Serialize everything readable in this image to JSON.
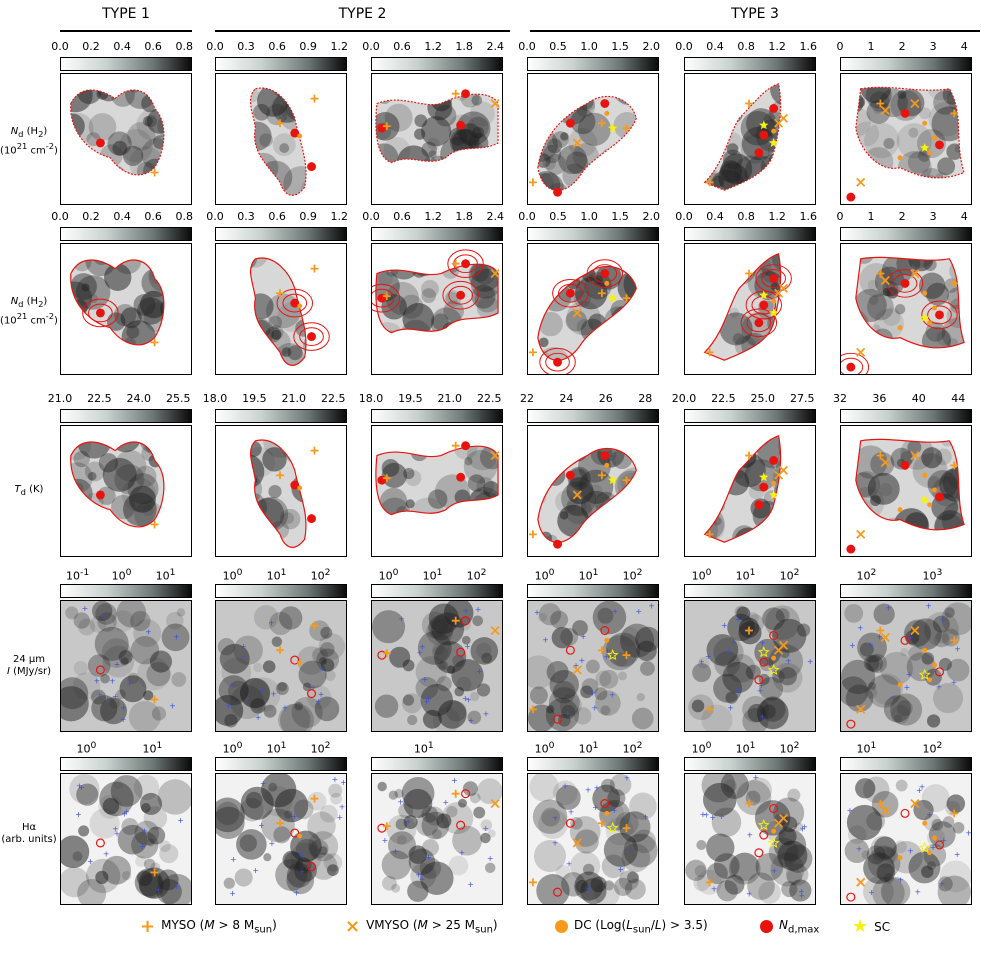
{
  "headers": {
    "type1": "TYPE 1",
    "type2": "TYPE 2",
    "type3": "TYPE 3"
  },
  "row_labels": {
    "row1": [
      "N_d (H_2)",
      "(10^21 cm^-2)"
    ],
    "row2": [
      "N_d (H_2)",
      "(10^21 cm^-2)"
    ],
    "row3": [
      "T_d (K)"
    ],
    "row4": [
      "24 μm",
      "I (MJy/sr)"
    ],
    "row5": [
      "Hα",
      "(arb. units)"
    ]
  },
  "colorbar_ticks": {
    "row1": [
      [
        "0.0",
        "0.2",
        "0.4",
        "0.6",
        "0.8"
      ],
      [
        "0.0",
        "0.3",
        "0.6",
        "0.9",
        "1.2"
      ],
      [
        "0.0",
        "0.6",
        "1.2",
        "1.8",
        "2.4"
      ],
      [
        "0.0",
        "0.5",
        "1.0",
        "1.5",
        "2.0"
      ],
      [
        "0.0",
        "0.4",
        "0.8",
        "1.2",
        "1.6"
      ],
      [
        "0",
        "1",
        "2",
        "3",
        "4"
      ]
    ],
    "row2": [
      [
        "0.0",
        "0.2",
        "0.4",
        "0.6",
        "0.8"
      ],
      [
        "0.0",
        "0.3",
        "0.6",
        "0.9",
        "1.2"
      ],
      [
        "0.0",
        "0.6",
        "1.2",
        "1.8",
        "2.4"
      ],
      [
        "0.0",
        "0.5",
        "1.0",
        "1.5",
        "2.0"
      ],
      [
        "0.0",
        "0.4",
        "0.8",
        "1.2",
        "1.6"
      ],
      [
        "0",
        "1",
        "2",
        "3",
        "4"
      ]
    ],
    "row3": [
      [
        "21.0",
        "22.5",
        "24.0",
        "25.5"
      ],
      [
        "18.0",
        "19.5",
        "21.0",
        "22.5"
      ],
      [
        "18.0",
        "19.5",
        "21.0",
        "22.5"
      ],
      [
        "22",
        "24",
        "26",
        "28"
      ],
      [
        "20.0",
        "22.5",
        "25.0",
        "27.5"
      ],
      [
        "32",
        "36",
        "40",
        "44"
      ]
    ],
    "row4": [
      [
        "10^-1",
        "10^0",
        "10^1"
      ],
      [
        "10^0",
        "10^1",
        "10^2"
      ],
      [
        "10^0",
        "10^1",
        "10^2"
      ],
      [
        "10^0",
        "10^1",
        "10^2"
      ],
      [
        "10^0",
        "10^1",
        "10^2"
      ],
      [
        "10^2",
        "10^3"
      ]
    ],
    "row5": [
      [
        "10^0",
        "10^1"
      ],
      [
        "10^0",
        "10^1",
        "10^2"
      ],
      [
        "10^1"
      ],
      [
        "10^0",
        "10^1",
        "10^2"
      ],
      [
        "10^0",
        "10^1",
        "10^2"
      ],
      [
        "10^1",
        "10^2"
      ]
    ]
  },
  "exponent_label": "1e21",
  "legend": {
    "myso": "MYSO (M > 8 M_sun)",
    "vmyso": "VMYSO (M > 25 M_sun)",
    "dc": "DC (Log(L_sun/L) > 3.5)",
    "ndmax": "N_d,max",
    "sc": "SC"
  },
  "colors": {
    "orange": "#f59a1c",
    "red": "#e8130f",
    "yellow": "#f5f20f",
    "blue": "#3b4fd8"
  }
}
